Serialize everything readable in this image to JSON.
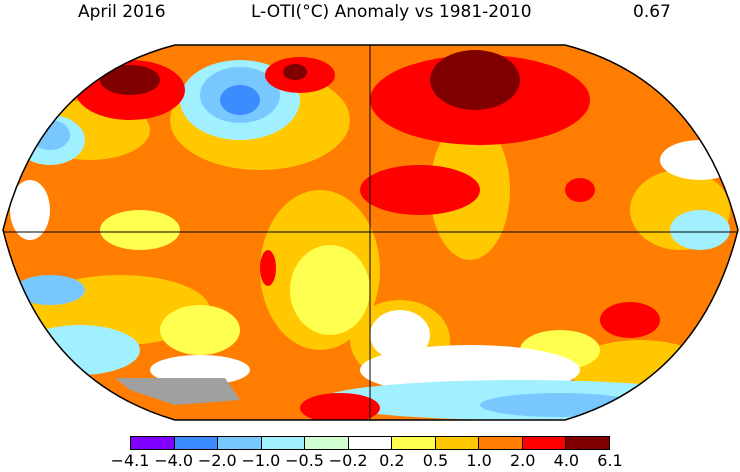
{
  "header": {
    "date": "April 2016",
    "title": "L-OTI(°C) Anomaly vs 1981-2010",
    "mean": "0.67"
  },
  "legend": {
    "ticks": [
      "−4.1",
      "−4.0",
      "−2.0",
      "−1.0",
      "−0.5",
      "−0.2",
      "0.2",
      "0.5",
      "1.0",
      "2.0",
      "4.0",
      "6.1"
    ],
    "colors": [
      "#8000ff",
      "#3c8cff",
      "#78c8ff",
      "#a0f0ff",
      "#d2ffd2",
      "#ffffff",
      "#ffff50",
      "#ffc800",
      "#ff7d00",
      "#ff0000",
      "#800000"
    ]
  },
  "map": {
    "projection": "Robinson-like world map",
    "missing_data_color": "#a0a0a0"
  }
}
